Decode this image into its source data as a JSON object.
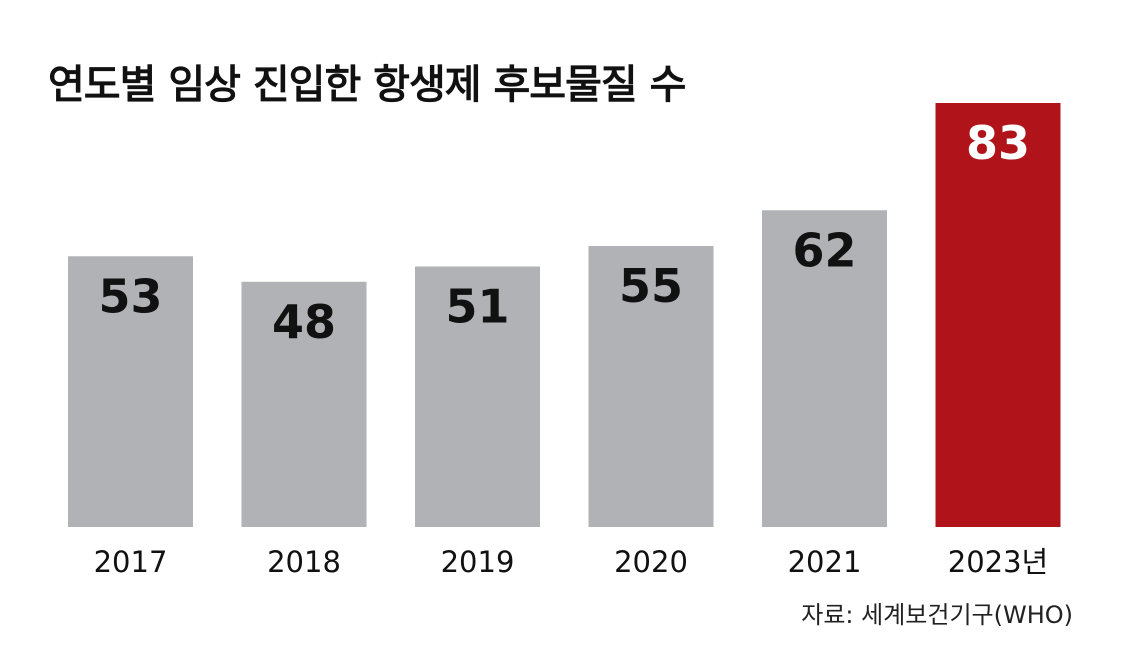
{
  "chart_data": {
    "type": "bar",
    "title": "연도별 임상 진입한 항생제 후보물질 수",
    "categories": [
      "2017",
      "2018",
      "2019",
      "2020",
      "2021",
      "2023년"
    ],
    "values": [
      53,
      48,
      51,
      55,
      62,
      83
    ],
    "highlight_index": 5,
    "xlabel": "",
    "ylabel": "",
    "ylim": [
      0,
      83
    ],
    "grid": false,
    "legend": "none",
    "source": "자료: 세계보건기구(WHO)"
  },
  "colors": {
    "bar": "#b1b2b5",
    "highlight": "#b01319",
    "label_dark": "#111111",
    "label_light": "#ffffff"
  }
}
